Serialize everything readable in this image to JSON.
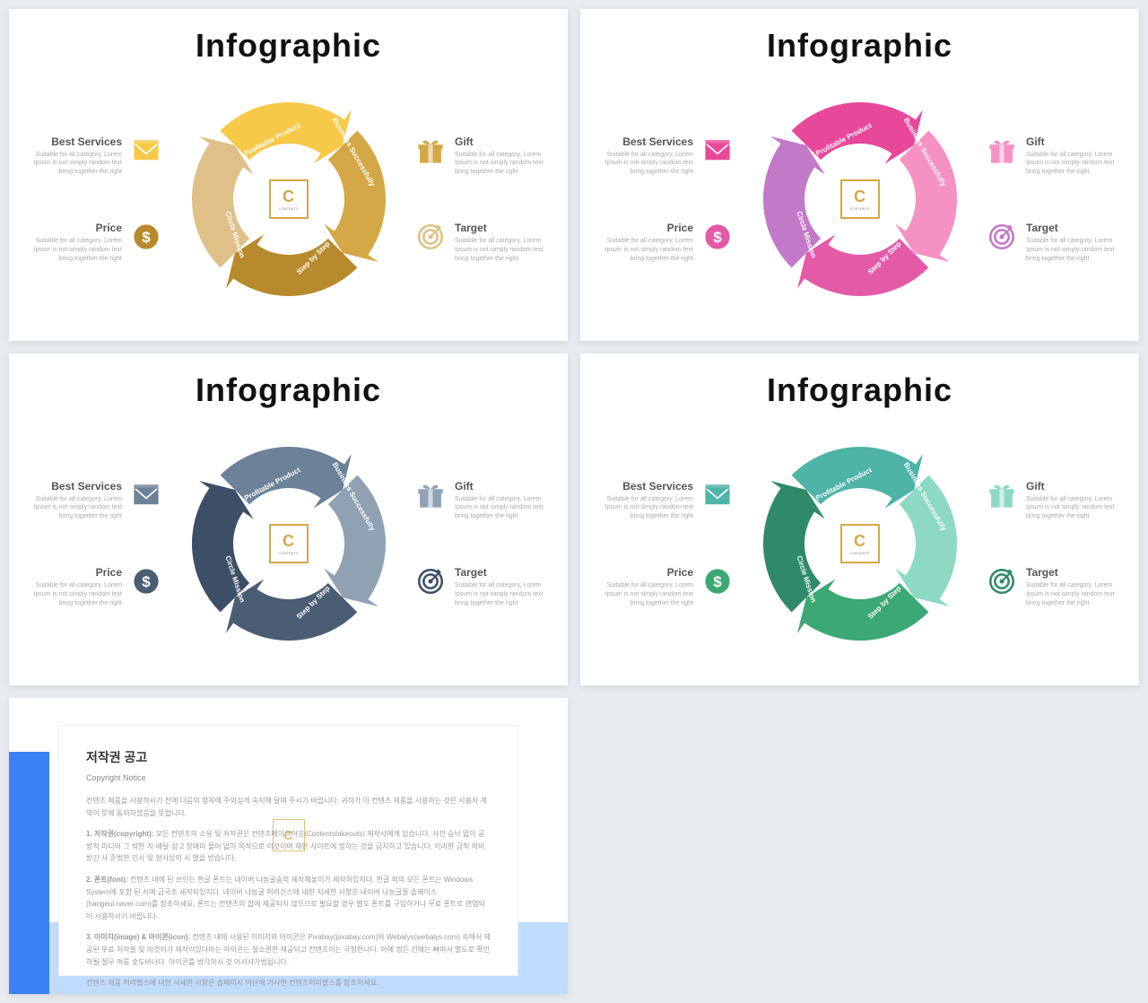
{
  "title": "Infographic",
  "desc": "Suitable for all category, Lorem Ipsum is not simply random text bring together the right",
  "items": {
    "tl": "Best Services",
    "bl": "Price",
    "tr": "Gift",
    "br": "Target"
  },
  "arcs": [
    "Profitable Product",
    "Business Successfully",
    "Step by Step",
    "Circle Mission"
  ],
  "logo": "C",
  "logo_sub": "CONTENTS",
  "palettes": [
    {
      "c1": "#f7c948",
      "c2": "#d4a847",
      "c3": "#b88a2e",
      "c4": "#dec088",
      "icon1": "#f7c948",
      "icon2": "#d4a847",
      "icon3": "#b88a2e",
      "icon4": "#dec088"
    },
    {
      "c1": "#e8489a",
      "c2": "#f591c3",
      "c3": "#e35aa7",
      "c4": "#c279c7",
      "icon1": "#e8489a",
      "icon2": "#f591c3",
      "icon3": "#e35aa7",
      "icon4": "#c279c7"
    },
    {
      "c1": "#6b8299",
      "c2": "#8fa1b3",
      "c3": "#4a5d73",
      "c4": "#3d4f66",
      "icon1": "#6b8299",
      "icon2": "#8fa1b3",
      "icon3": "#4a5d73",
      "icon4": "#3d4f66"
    },
    {
      "c1": "#4fb3a8",
      "c2": "#8dd9c4",
      "c3": "#3ca874",
      "c4": "#2f8a6a",
      "icon1": "#4fb3a8",
      "icon2": "#8dd9c4",
      "icon3": "#3ca874",
      "icon4": "#2f8a6a"
    }
  ],
  "notice": {
    "title_kr": "저작권 공고",
    "title_en": "Copyright Notice",
    "p1": "컨텐츠 제품을 사용하시기 전에 다음의 항목에 주의깊게 숙지해 달며 주시기 바랍니다. 귀하가 이 컨텐츠 제품을 사용하는 것은 사용자 계약이 뜻에 동의하셨음을 뜻합니다.",
    "p2_label": "1. 저작권(copyright):",
    "p2": " 모든 컨텐츠의 소유 및 저작권은 컨텐츠메이크아웃(Contentstakeouts) 제작사에게 있습니다. 사전 승낙 없이 공방적 미디어 그 밖한 지·배달·샵 2 장애미 물어 없이 목적으로 이것이며 재판 사이트에 정하는 것을 금지하고 있습니다. 이러한 금칙 허비 받긴 사 준법한 민사 및 형사상의 시 벌을 받습니다.",
    "p3_label": "2. 폰트(font):",
    "p3": " 컨텐츠 내에 된 쓰인는 한글 폰트는 네이버 나눔굴숨의 제작해놓이가 제작허있지다. 한글 외의 모든 폰트는 Windows System에 포함 된 시예 금국조 세작되있지다. 네이버 나눔굴 허리선스에 내한 지세한 사항은 네이버 나눔글꼴 솔메이스(hangeul.naver.com)를 참조하세요. 폰트는 컨텐츠의 합에 제공되지 않으므로 필요할 경우 별도 폰트를 구입하거나 무료 폰트로 괜염되어 사용하시기 바랍니다.",
    "p4_label": "3. 이미지(image) & 아이콘(icon):",
    "p4": " 컨텐츠 내에 사용된 이미지와 아이콘은 Pixabay(pixabay.com)와 Webalys(webalys.com) 속에서 제공된 무료 저작들 및 이것이가 제작려있다마는 아이콘는 절소권한 제공되고 컨텐츠이는 국정한나다. 아에 정든 건에는 빠며서 별도로 확인하될 절무 여름 숯도바너다. 아이콘를 방각하시 것 어서사가법됩니다.",
    "p5": "컨텐츠 제품 허리별스에 내한 서세한 사항은 솔페미시 어단에 기사한 컨텐츠허리별스를 참조하세요."
  }
}
